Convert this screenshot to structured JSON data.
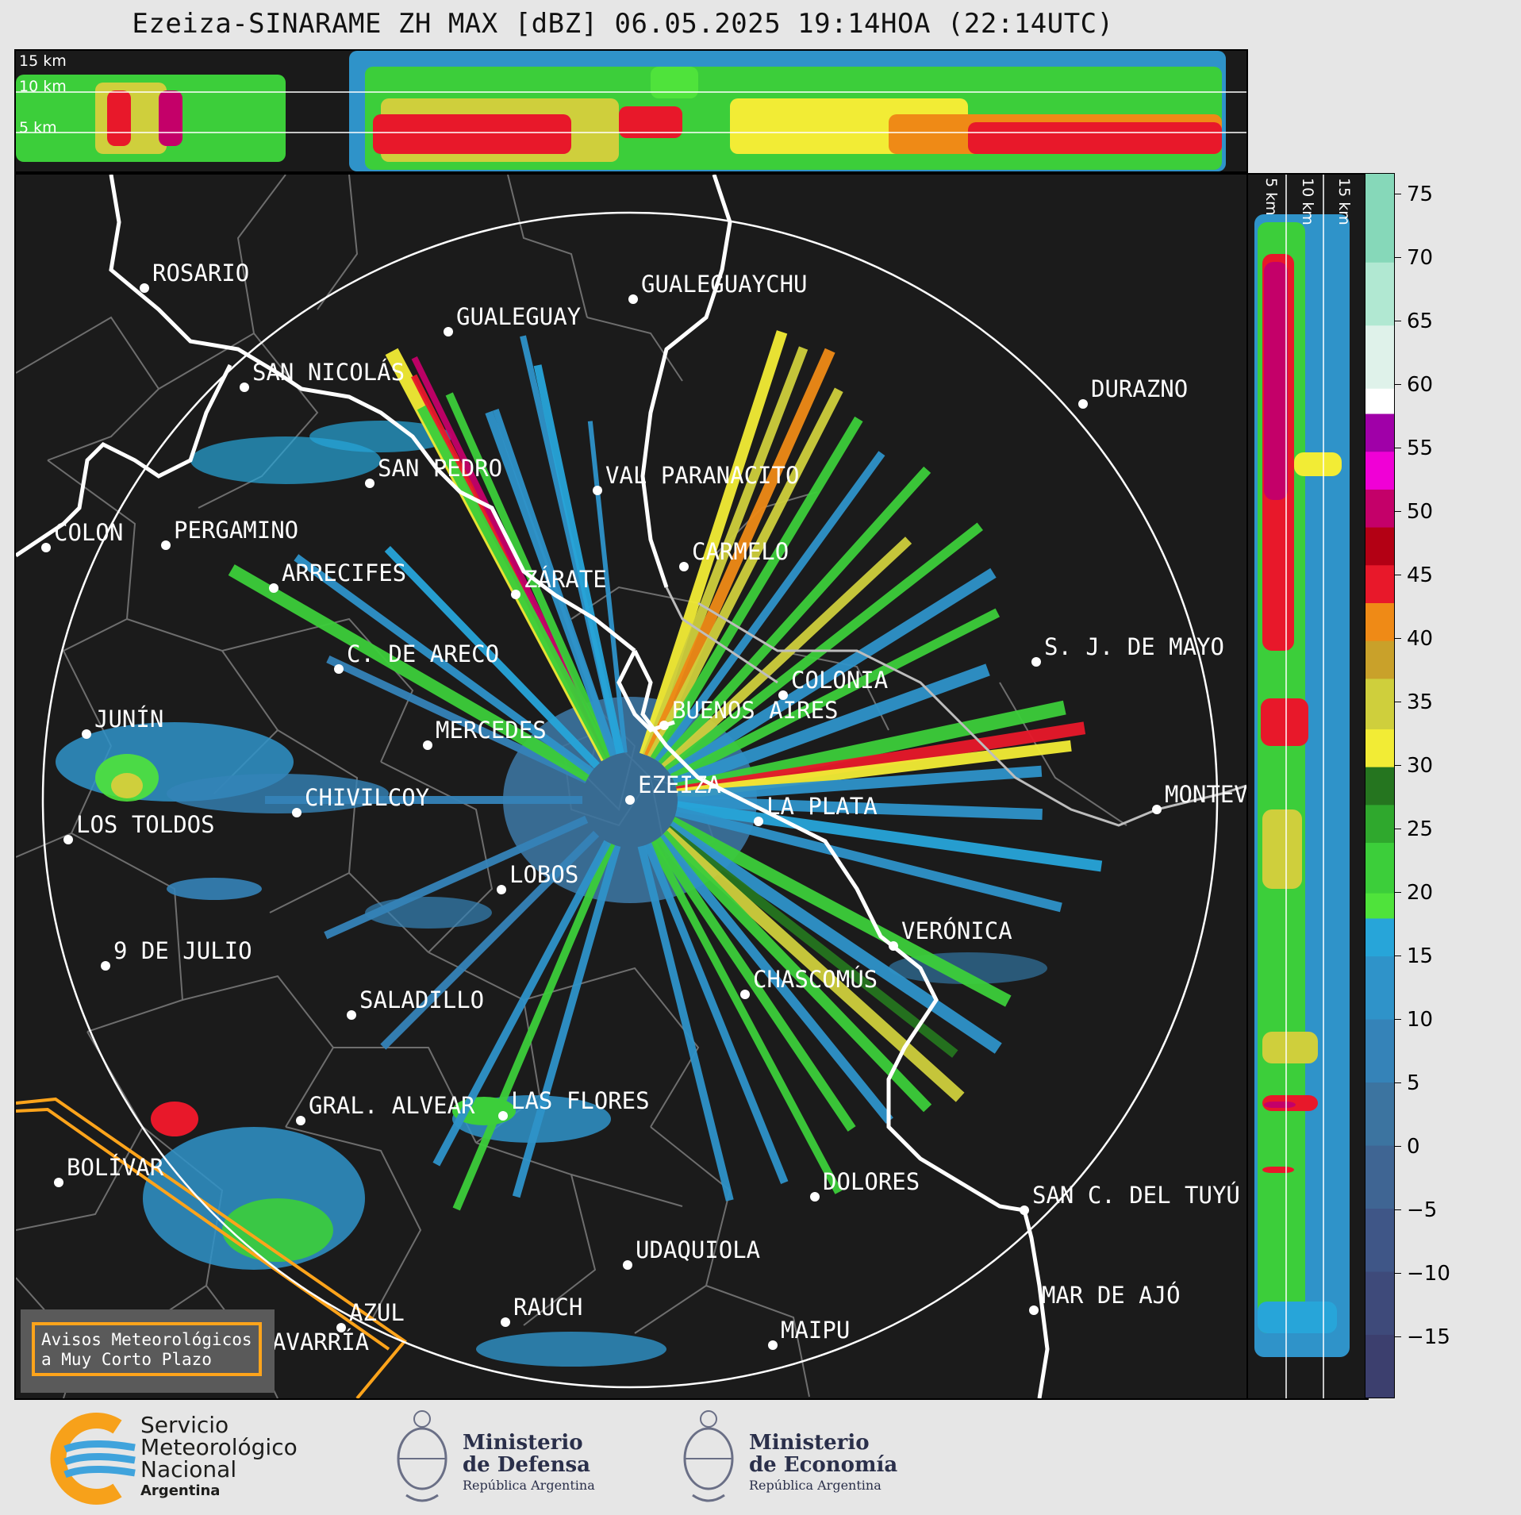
{
  "title": "Ezeiza-SINARAME ZH MAX [dBZ] 06.05.2025 19:14HOA (22:14UTC)",
  "top_panel": {
    "height_labels": [
      "15 km",
      "10 km",
      "5 km"
    ]
  },
  "right_panel": {
    "height_labels": [
      "5 km",
      "10 km",
      "15 km"
    ]
  },
  "colorbar": {
    "ticks": [
      "75",
      "70",
      "65",
      "60",
      "55",
      "50",
      "45",
      "40",
      "35",
      "30",
      "25",
      "20",
      "15",
      "10",
      "5",
      "0",
      "−5",
      "−10",
      "−15"
    ],
    "range": [
      -20,
      77
    ],
    "stops": [
      {
        "from": -20,
        "to": -15,
        "color": "#3c3f6e"
      },
      {
        "from": -15,
        "to": -10,
        "color": "#3e4a7a"
      },
      {
        "from": -10,
        "to": -5,
        "color": "#3f5687"
      },
      {
        "from": -5,
        "to": 0,
        "color": "#3f6593"
      },
      {
        "from": 0,
        "to": 5,
        "color": "#3c74a0"
      },
      {
        "from": 5,
        "to": 10,
        "color": "#3583b8"
      },
      {
        "from": 10,
        "to": 15,
        "color": "#2f93c9"
      },
      {
        "from": 15,
        "to": 18,
        "color": "#27a5d9"
      },
      {
        "from": 18,
        "to": 20,
        "color": "#4fe33b"
      },
      {
        "from": 20,
        "to": 24,
        "color": "#3cce3a"
      },
      {
        "from": 24,
        "to": 27,
        "color": "#2fa82d"
      },
      {
        "from": 27,
        "to": 30,
        "color": "#25751f"
      },
      {
        "from": 30,
        "to": 33,
        "color": "#f2ec35"
      },
      {
        "from": 33,
        "to": 37,
        "color": "#cfcf3c"
      },
      {
        "from": 37,
        "to": 40,
        "color": "#c9a12a"
      },
      {
        "from": 40,
        "to": 43,
        "color": "#ef8a16"
      },
      {
        "from": 43,
        "to": 46,
        "color": "#e8182a"
      },
      {
        "from": 46,
        "to": 49,
        "color": "#b30014"
      },
      {
        "from": 49,
        "to": 52,
        "color": "#c40069"
      },
      {
        "from": 52,
        "to": 55,
        "color": "#f000d6"
      },
      {
        "from": 55,
        "to": 58,
        "color": "#a000a8"
      },
      {
        "from": 58,
        "to": 60,
        "color": "#ffffff"
      },
      {
        "from": 60,
        "to": 65,
        "color": "#dff2ea"
      },
      {
        "from": 65,
        "to": 70,
        "color": "#b1e8d2"
      },
      {
        "from": 70,
        "to": 77,
        "color": "#86d8b9"
      }
    ]
  },
  "radar": {
    "name": "EZEIZA",
    "range_ring": "240 km"
  },
  "cities": [
    {
      "name": "ROSARIO"
    },
    {
      "name": "GUALEGUAYCHU"
    },
    {
      "name": "GUALEGUAY"
    },
    {
      "name": "SAN NICOLÁS"
    },
    {
      "name": "DURAZNO"
    },
    {
      "name": "SAN PEDRO"
    },
    {
      "name": "VAL PARANACITO"
    },
    {
      "name": "COLON"
    },
    {
      "name": "PERGAMINO"
    },
    {
      "name": "CARMELO"
    },
    {
      "name": "ARRECIFES"
    },
    {
      "name": "ZÁRATE"
    },
    {
      "name": "S. J. DE MAYO"
    },
    {
      "name": "C. DE ARECO"
    },
    {
      "name": "COLONIA"
    },
    {
      "name": "BUENOS AIRES"
    },
    {
      "name": "JUNÍN"
    },
    {
      "name": "MERCEDES"
    },
    {
      "name": "EZEIZA"
    },
    {
      "name": "MONTEVIDEO"
    },
    {
      "name": "CHIVILCOY"
    },
    {
      "name": "LA PLATA"
    },
    {
      "name": "LOS TOLDOS"
    },
    {
      "name": "LOBOS"
    },
    {
      "name": "VERÓNICA"
    },
    {
      "name": "9 DE JULIO"
    },
    {
      "name": "CHASCOMÚS"
    },
    {
      "name": "SALADILLO"
    },
    {
      "name": "GRAL. ALVEAR"
    },
    {
      "name": "LAS FLORES"
    },
    {
      "name": "BOLÍVAR"
    },
    {
      "name": "DOLORES"
    },
    {
      "name": "SAN C. DEL TUYÚ"
    },
    {
      "name": "UDAQUIOLA"
    },
    {
      "name": "AZUL"
    },
    {
      "name": "MAR DE AJÓ"
    },
    {
      "name": "RAUCH"
    },
    {
      "name": "OLAVARRÍA"
    },
    {
      "name": "MAIPU"
    }
  ],
  "avisos": {
    "line1": "Avisos Meteorológicos",
    "line2": "a Muy Corto Plazo"
  },
  "logos": {
    "smn": {
      "l1": "Servicio",
      "l2": "Meteorológico",
      "l3": "Nacional",
      "l4": "Argentina"
    },
    "defensa": {
      "m1": "Ministerio",
      "m2": "de Defensa",
      "m3": "República Argentina"
    },
    "economia": {
      "m1": "Ministerio",
      "m2": "de Economía",
      "m3": "República Argentina"
    }
  }
}
